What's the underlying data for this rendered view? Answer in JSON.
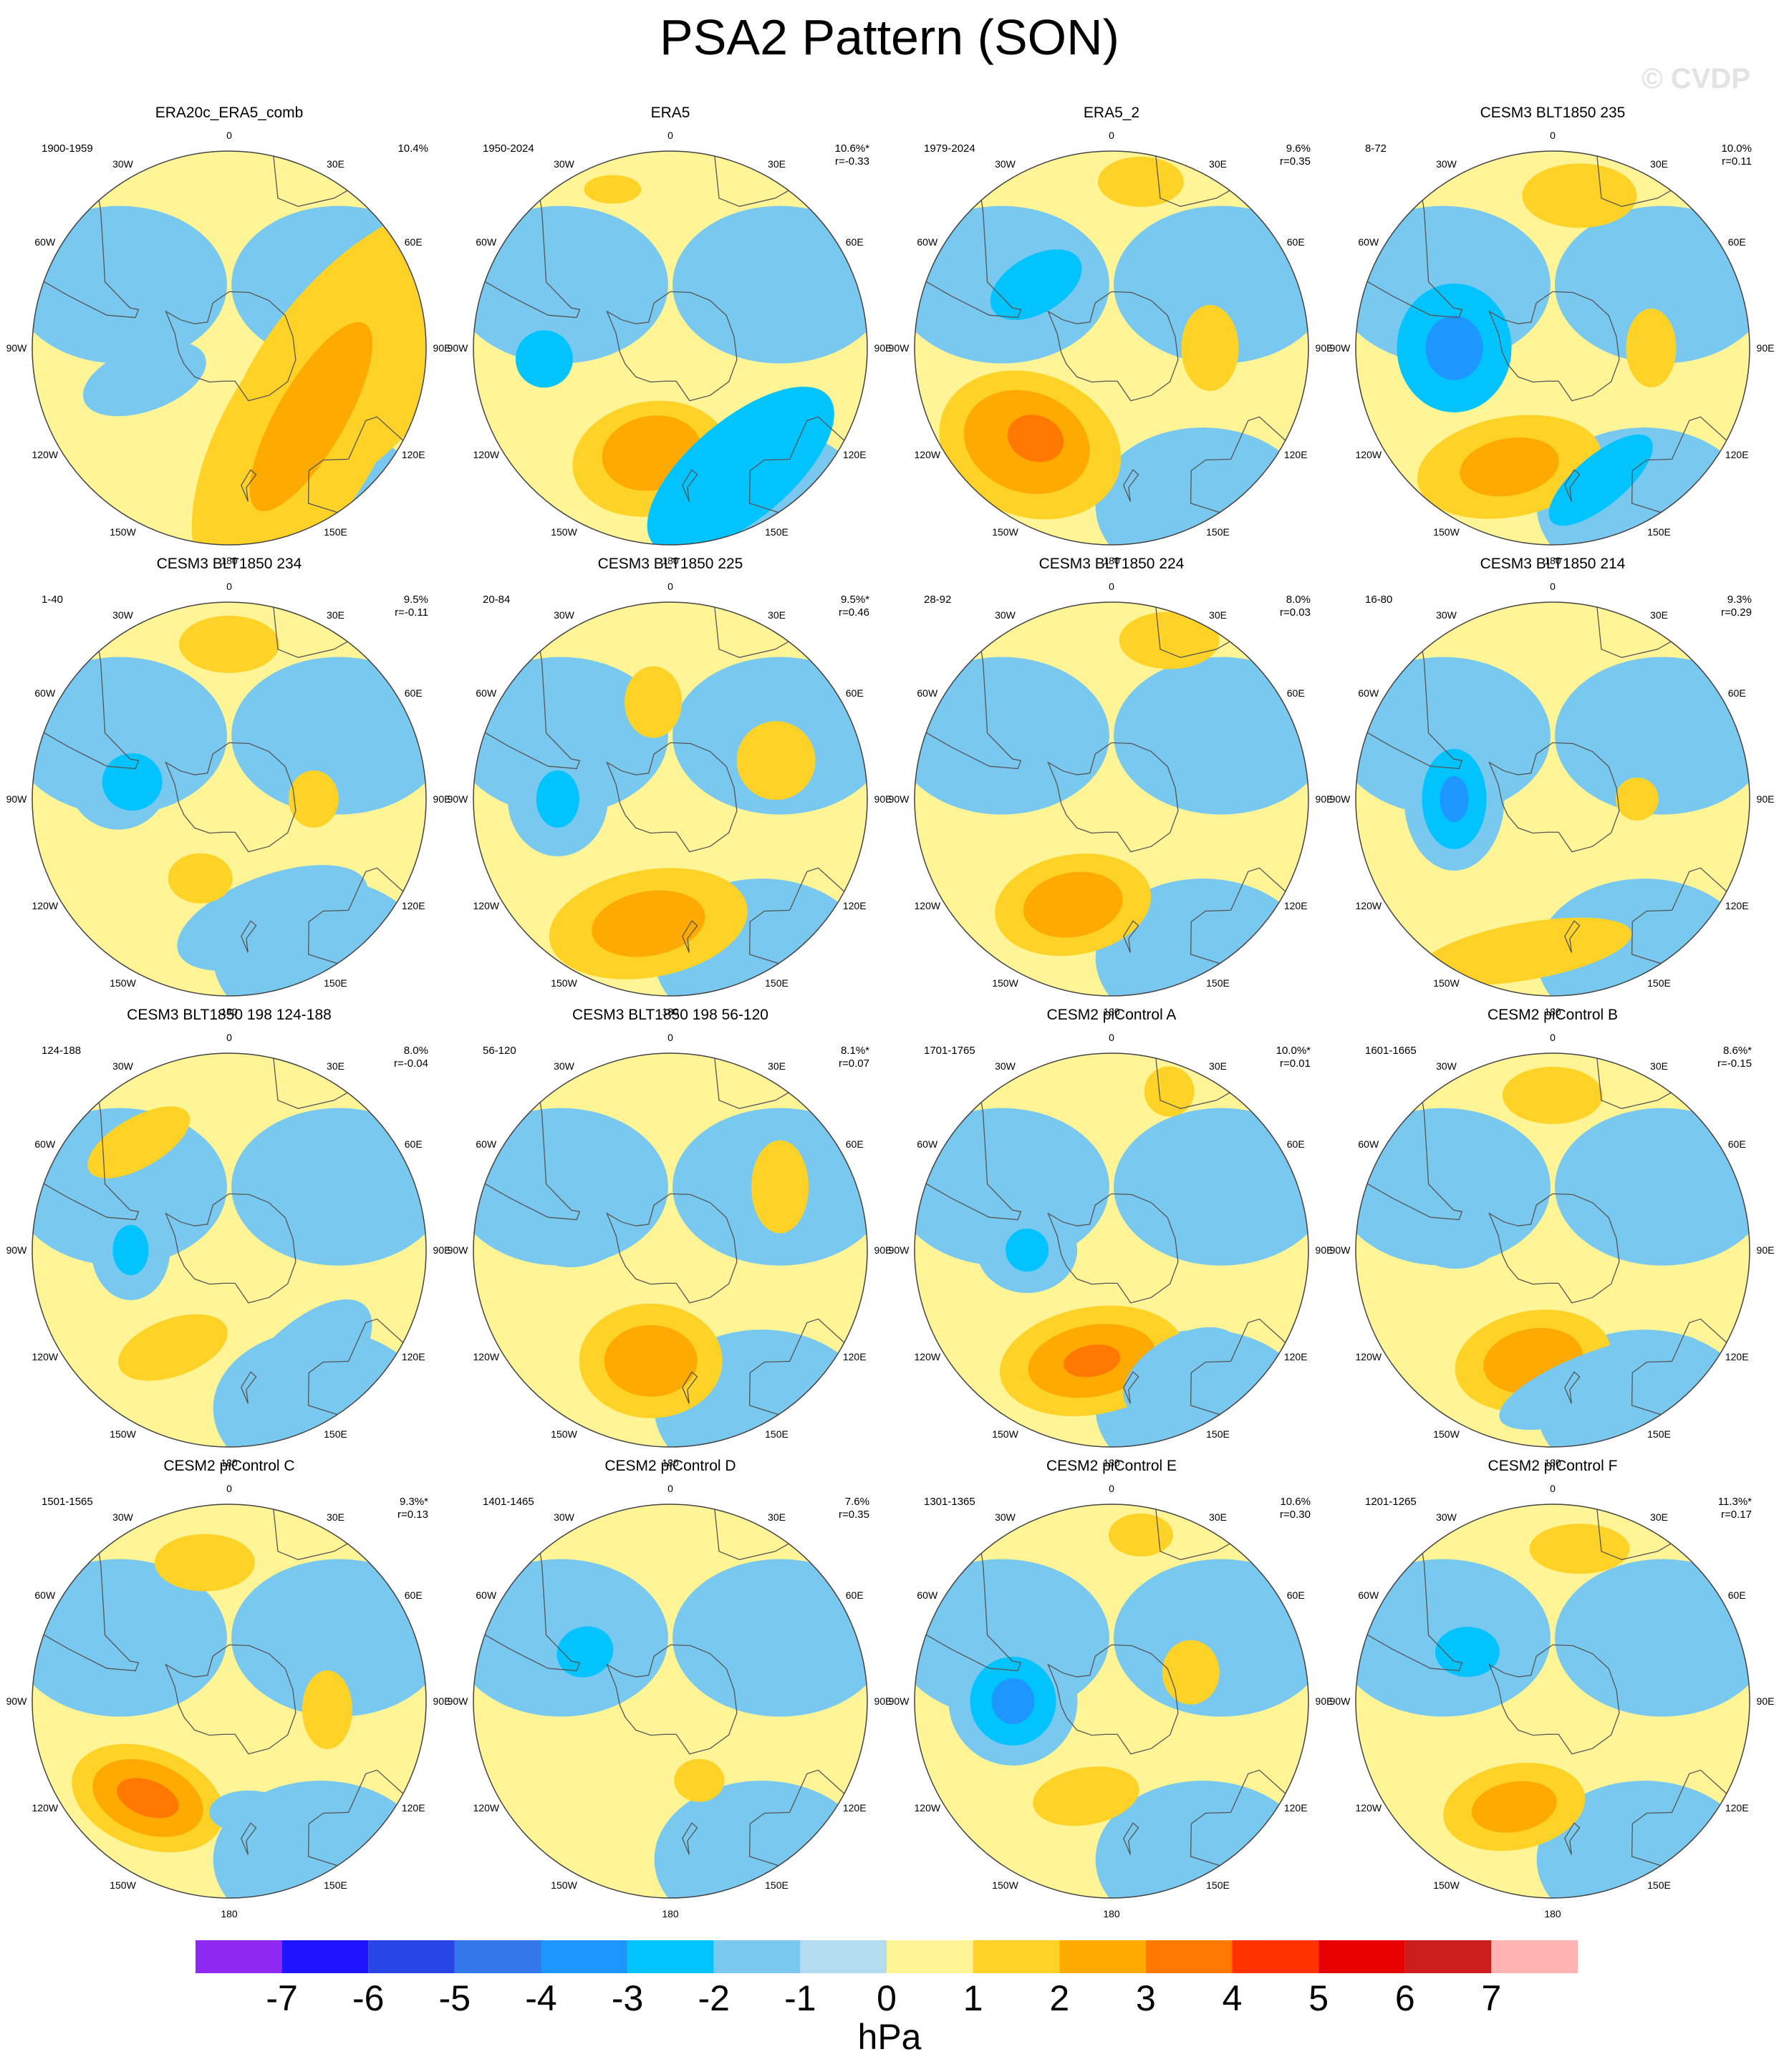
{
  "title": "PSA2 Pattern (SON)",
  "watermark": "© CVDP",
  "lon_labels": [
    "0",
    "30E",
    "60E",
    "90E",
    "120E",
    "150E",
    "180",
    "150W",
    "120W",
    "90W",
    "60W",
    "30W"
  ],
  "colors": {
    "land_outline": "#555555",
    "map_border": "#444444"
  },
  "colorbar": {
    "unit": "hPa",
    "ticks": [
      "-7",
      "-6",
      "-5",
      "-4",
      "-3",
      "-2",
      "-1",
      "0",
      "1",
      "2",
      "3",
      "4",
      "5",
      "6",
      "7"
    ],
    "colors": [
      "#8c28f0",
      "#1e14ff",
      "#2846e6",
      "#3278eb",
      "#1e96ff",
      "#00c3ff",
      "#78c8f0",
      "#b4dcf0",
      "#fff596",
      "#ffd228",
      "#ffaa00",
      "#ff7800",
      "#ff3200",
      "#e60000",
      "#cd1e1e",
      "#ffb4b4"
    ]
  },
  "panels": [
    {
      "title": "ERA20c_ERA5_comb",
      "period": "1900-1959",
      "pct": "10.4%",
      "r": "",
      "blobs": [
        {
          "lat": -44,
          "lon": 95,
          "rx": 120,
          "ry": 260,
          "rot": 40,
          "level": 1
        },
        {
          "lat": -50,
          "lon": 140,
          "rx": 110,
          "ry": 240,
          "rot": 30,
          "level": 1
        },
        {
          "lat": -52,
          "lon": 130,
          "rx": 48,
          "ry": 150,
          "rot": 30,
          "level": 2
        },
        {
          "lat": -58,
          "lon": -110,
          "rx": 90,
          "ry": 45,
          "rot": -20,
          "level": -1
        },
        {
          "lat": -30,
          "lon": -65,
          "rx": 60,
          "ry": 40,
          "rot": 0,
          "level": -1
        }
      ]
    },
    {
      "title": "ERA5",
      "period": "1950-2024",
      "pct": "10.6%*",
      "r": "r=-0.33",
      "blobs": [
        {
          "lat": -50,
          "lon": -170,
          "rx": 110,
          "ry": 80,
          "rot": -10,
          "level": 1
        },
        {
          "lat": -52,
          "lon": -170,
          "rx": 70,
          "ry": 52,
          "rot": -10,
          "level": 2
        },
        {
          "lat": -40,
          "lon": 150,
          "rx": 160,
          "ry": 70,
          "rot": -40,
          "level": -2
        },
        {
          "lat": -45,
          "lon": -95,
          "rx": 40,
          "ry": 40,
          "rot": 0,
          "level": -2
        },
        {
          "lat": -30,
          "lon": -20,
          "rx": 40,
          "ry": 20,
          "rot": 0,
          "level": 1
        }
      ]
    },
    {
      "title": "ERA5_2",
      "period": "1979-2024",
      "pct": "9.6%",
      "r": "r=0.35",
      "blobs": [
        {
          "lat": -45,
          "lon": -140,
          "rx": 130,
          "ry": 100,
          "rot": 20,
          "level": 1
        },
        {
          "lat": -45,
          "lon": -138,
          "rx": 90,
          "ry": 70,
          "rot": 20,
          "level": 2
        },
        {
          "lat": -48,
          "lon": -140,
          "rx": 40,
          "ry": 32,
          "rot": 20,
          "level": 3
        },
        {
          "lat": -30,
          "lon": 10,
          "rx": 60,
          "ry": 35,
          "rot": 0,
          "level": 1
        },
        {
          "lat": -55,
          "lon": 90,
          "rx": 40,
          "ry": 60,
          "rot": 0,
          "level": 1
        },
        {
          "lat": -55,
          "lon": -50,
          "rx": 70,
          "ry": 40,
          "rot": -30,
          "level": -2
        }
      ]
    },
    {
      "title": "CESM3 BLT1850 235",
      "period": "8-72",
      "pct": "10.0%",
      "r": "r=0.11",
      "blobs": [
        {
          "lat": -55,
          "lon": -90,
          "rx": 80,
          "ry": 90,
          "rot": 0,
          "level": -2
        },
        {
          "lat": -55,
          "lon": -90,
          "rx": 40,
          "ry": 45,
          "rot": 0,
          "level": -3
        },
        {
          "lat": -45,
          "lon": -160,
          "rx": 130,
          "ry": 70,
          "rot": -10,
          "level": 1
        },
        {
          "lat": -45,
          "lon": -160,
          "rx": 70,
          "ry": 40,
          "rot": -10,
          "level": 2
        },
        {
          "lat": -35,
          "lon": 10,
          "rx": 80,
          "ry": 45,
          "rot": 0,
          "level": 1
        },
        {
          "lat": -40,
          "lon": 160,
          "rx": 90,
          "ry": 35,
          "rot": -40,
          "level": -2
        },
        {
          "lat": -55,
          "lon": 90,
          "rx": 35,
          "ry": 55,
          "rot": 0,
          "level": 1
        }
      ]
    },
    {
      "title": "CESM3 BLT1850 234",
      "period": "1-40",
      "pct": "9.5%",
      "r": "r=-0.11",
      "blobs": [
        {
          "lat": -50,
          "lon": -80,
          "rx": 70,
          "ry": 70,
          "rot": 0,
          "level": -1
        },
        {
          "lat": -55,
          "lon": -80,
          "rx": 42,
          "ry": 40,
          "rot": 0,
          "level": -2
        },
        {
          "lat": -45,
          "lon": 160,
          "rx": 140,
          "ry": 60,
          "rot": -20,
          "level": -1
        },
        {
          "lat": -35,
          "lon": 0,
          "rx": 70,
          "ry": 40,
          "rot": 0,
          "level": 1
        },
        {
          "lat": -60,
          "lon": -160,
          "rx": 45,
          "ry": 35,
          "rot": 0,
          "level": 1
        },
        {
          "lat": -60,
          "lon": 90,
          "rx": 35,
          "ry": 40,
          "rot": 0,
          "level": 1
        }
      ]
    },
    {
      "title": "CESM3 BLT1850 225",
      "period": "20-84",
      "pct": "9.5%*",
      "r": "r=0.46",
      "blobs": [
        {
          "lat": -45,
          "lon": -170,
          "rx": 140,
          "ry": 75,
          "rot": -10,
          "level": 1
        },
        {
          "lat": -45,
          "lon": -170,
          "rx": 80,
          "ry": 45,
          "rot": -10,
          "level": 2
        },
        {
          "lat": -50,
          "lon": -90,
          "rx": 70,
          "ry": 80,
          "rot": 0,
          "level": -1
        },
        {
          "lat": -50,
          "lon": -90,
          "rx": 30,
          "ry": 40,
          "rot": 0,
          "level": -2
        },
        {
          "lat": -50,
          "lon": 70,
          "rx": 55,
          "ry": 55,
          "rot": 0,
          "level": 1
        },
        {
          "lat": -55,
          "lon": -10,
          "rx": 40,
          "ry": 50,
          "rot": 0,
          "level": 1
        }
      ]
    },
    {
      "title": "CESM3 BLT1850 224",
      "period": "28-92",
      "pct": "8.0%",
      "r": "r=0.03",
      "blobs": [
        {
          "lat": -50,
          "lon": -160,
          "rx": 110,
          "ry": 70,
          "rot": -10,
          "level": 1
        },
        {
          "lat": -50,
          "lon": -160,
          "rx": 70,
          "ry": 45,
          "rot": -10,
          "level": 2
        },
        {
          "lat": -55,
          "lon": -60,
          "rx": 70,
          "ry": 55,
          "rot": -20,
          "level": -1
        },
        {
          "lat": -25,
          "lon": 170,
          "rx": 60,
          "ry": 25,
          "rot": 0,
          "level": -1
        },
        {
          "lat": -30,
          "lon": 20,
          "rx": 70,
          "ry": 40,
          "rot": 0,
          "level": 1
        }
      ]
    },
    {
      "title": "CESM3 BLT1850 214",
      "period": "16-80",
      "pct": "9.3%",
      "r": "r=0.29",
      "blobs": [
        {
          "lat": -55,
          "lon": -90,
          "rx": 70,
          "ry": 100,
          "rot": 0,
          "level": -1
        },
        {
          "lat": -55,
          "lon": -90,
          "rx": 45,
          "ry": 70,
          "rot": 0,
          "level": -2
        },
        {
          "lat": -55,
          "lon": -90,
          "rx": 20,
          "ry": 32,
          "rot": 0,
          "level": -3
        },
        {
          "lat": -35,
          "lon": -170,
          "rx": 150,
          "ry": 40,
          "rot": -10,
          "level": 1
        },
        {
          "lat": -60,
          "lon": 90,
          "rx": 30,
          "ry": 30,
          "rot": 0,
          "level": 1
        }
      ]
    },
    {
      "title": "CESM3 BLT1850 198 124-188",
      "period": "124-188",
      "pct": "8.0%",
      "r": "r=-0.04",
      "blobs": [
        {
          "lat": -55,
          "lon": -90,
          "rx": 55,
          "ry": 70,
          "rot": 0,
          "level": -1
        },
        {
          "lat": -55,
          "lon": -90,
          "rx": 25,
          "ry": 35,
          "rot": 0,
          "level": -2
        },
        {
          "lat": -40,
          "lon": 150,
          "rx": 130,
          "ry": 60,
          "rot": -45,
          "level": -1
        },
        {
          "lat": -40,
          "lon": -40,
          "rx": 80,
          "ry": 35,
          "rot": -30,
          "level": 1
        },
        {
          "lat": -50,
          "lon": -150,
          "rx": 80,
          "ry": 40,
          "rot": -20,
          "level": 1
        }
      ]
    },
    {
      "title": "CESM3 BLT1850 198 56-120",
      "period": "56-120",
      "pct": "8.1%*",
      "r": "r=0.07",
      "blobs": [
        {
          "lat": -50,
          "lon": -170,
          "rx": 100,
          "ry": 80,
          "rot": 0,
          "level": 1
        },
        {
          "lat": -50,
          "lon": -170,
          "rx": 65,
          "ry": 50,
          "rot": 0,
          "level": 2
        },
        {
          "lat": -60,
          "lon": -80,
          "rx": 70,
          "ry": 40,
          "rot": -20,
          "level": -1
        },
        {
          "lat": -45,
          "lon": 60,
          "rx": 40,
          "ry": 65,
          "rot": 0,
          "level": 1
        }
      ]
    },
    {
      "title": "CESM2 piControl A",
      "period": "1701-1765",
      "pct": "10.0%*",
      "r": "r=0.01",
      "blobs": [
        {
          "lat": -50,
          "lon": -170,
          "rx": 130,
          "ry": 75,
          "rot": -10,
          "level": 1
        },
        {
          "lat": -50,
          "lon": -170,
          "rx": 90,
          "ry": 50,
          "rot": -10,
          "level": 2
        },
        {
          "lat": -50,
          "lon": -170,
          "rx": 40,
          "ry": 22,
          "rot": -10,
          "level": 3
        },
        {
          "lat": -60,
          "lon": -90,
          "rx": 70,
          "ry": 60,
          "rot": 0,
          "level": -1
        },
        {
          "lat": -60,
          "lon": -90,
          "rx": 30,
          "ry": 30,
          "rot": 0,
          "level": -2
        },
        {
          "lat": -40,
          "lon": 150,
          "rx": 90,
          "ry": 50,
          "rot": -30,
          "level": -1
        },
        {
          "lat": -30,
          "lon": 20,
          "rx": 35,
          "ry": 35,
          "rot": 0,
          "level": 1
        }
      ]
    },
    {
      "title": "CESM2 piControl B",
      "period": "1601-1665",
      "pct": "8.6%*",
      "r": "r=-0.15",
      "blobs": [
        {
          "lat": -50,
          "lon": -170,
          "rx": 110,
          "ry": 70,
          "rot": -10,
          "level": 1
        },
        {
          "lat": -50,
          "lon": -170,
          "rx": 70,
          "ry": 45,
          "rot": -10,
          "level": 2
        },
        {
          "lat": -55,
          "lon": -80,
          "rx": 65,
          "ry": 50,
          "rot": 0,
          "level": -1
        },
        {
          "lat": -40,
          "lon": 160,
          "rx": 150,
          "ry": 45,
          "rot": -20,
          "level": -1
        },
        {
          "lat": -35,
          "lon": 0,
          "rx": 70,
          "ry": 40,
          "rot": 0,
          "level": 1
        }
      ]
    },
    {
      "title": "CESM2 piControl C",
      "period": "1501-1565",
      "pct": "9.3%*",
      "r": "r=0.13",
      "blobs": [
        {
          "lat": -45,
          "lon": -140,
          "rx": 110,
          "ry": 70,
          "rot": 20,
          "level": 1
        },
        {
          "lat": -45,
          "lon": -140,
          "rx": 80,
          "ry": 50,
          "rot": 20,
          "level": 2
        },
        {
          "lat": -45,
          "lon": -140,
          "rx": 45,
          "ry": 25,
          "rot": 20,
          "level": 3
        },
        {
          "lat": -55,
          "lon": -50,
          "rx": 70,
          "ry": 40,
          "rot": -20,
          "level": -1
        },
        {
          "lat": -40,
          "lon": -10,
          "rx": 70,
          "ry": 40,
          "rot": 0,
          "level": 1
        },
        {
          "lat": -55,
          "lon": 95,
          "rx": 35,
          "ry": 55,
          "rot": 0,
          "level": 1
        },
        {
          "lat": -50,
          "lon": 170,
          "rx": 55,
          "ry": 30,
          "rot": 0,
          "level": -1
        }
      ]
    },
    {
      "title": "CESM2 piControl D",
      "period": "1401-1465",
      "pct": "7.6%",
      "r": "r=0.35",
      "blobs": [
        {
          "lat": -55,
          "lon": -60,
          "rx": 75,
          "ry": 70,
          "rot": -20,
          "level": -1
        },
        {
          "lat": -55,
          "lon": -60,
          "rx": 40,
          "ry": 35,
          "rot": -20,
          "level": -2
        },
        {
          "lat": -60,
          "lon": 160,
          "rx": 35,
          "ry": 30,
          "rot": 0,
          "level": 1
        }
      ]
    },
    {
      "title": "CESM2 piControl E",
      "period": "1301-1365",
      "pct": "10.6%",
      "r": "r=0.30",
      "blobs": [
        {
          "lat": -55,
          "lon": -90,
          "rx": 90,
          "ry": 90,
          "rot": 0,
          "level": -1
        },
        {
          "lat": -55,
          "lon": -90,
          "rx": 60,
          "ry": 62,
          "rot": 0,
          "level": -2
        },
        {
          "lat": -55,
          "lon": -90,
          "rx": 30,
          "ry": 32,
          "rot": 0,
          "level": -3
        },
        {
          "lat": -55,
          "lon": -165,
          "rx": 75,
          "ry": 40,
          "rot": -10,
          "level": 1
        },
        {
          "lat": -60,
          "lon": 70,
          "rx": 40,
          "ry": 45,
          "rot": 0,
          "level": 1
        },
        {
          "lat": -30,
          "lon": 10,
          "rx": 45,
          "ry": 30,
          "rot": 0,
          "level": 1
        }
      ]
    },
    {
      "title": "CESM2 piControl F",
      "period": "1201-1265",
      "pct": "11.3%*",
      "r": "r=0.17",
      "blobs": [
        {
          "lat": -55,
          "lon": -60,
          "rx": 75,
          "ry": 60,
          "rot": 0,
          "level": -1
        },
        {
          "lat": -55,
          "lon": -60,
          "rx": 45,
          "ry": 35,
          "rot": 0,
          "level": -2
        },
        {
          "lat": -50,
          "lon": -160,
          "rx": 100,
          "ry": 60,
          "rot": -10,
          "level": 1
        },
        {
          "lat": -50,
          "lon": -160,
          "rx": 60,
          "ry": 35,
          "rot": -10,
          "level": 2
        },
        {
          "lat": -35,
          "lon": 10,
          "rx": 70,
          "ry": 35,
          "rot": 0,
          "level": 1
        },
        {
          "lat": -60,
          "lon": 70,
          "rx": 30,
          "ry": 30,
          "rot": 0,
          "level": -1
        }
      ]
    }
  ]
}
